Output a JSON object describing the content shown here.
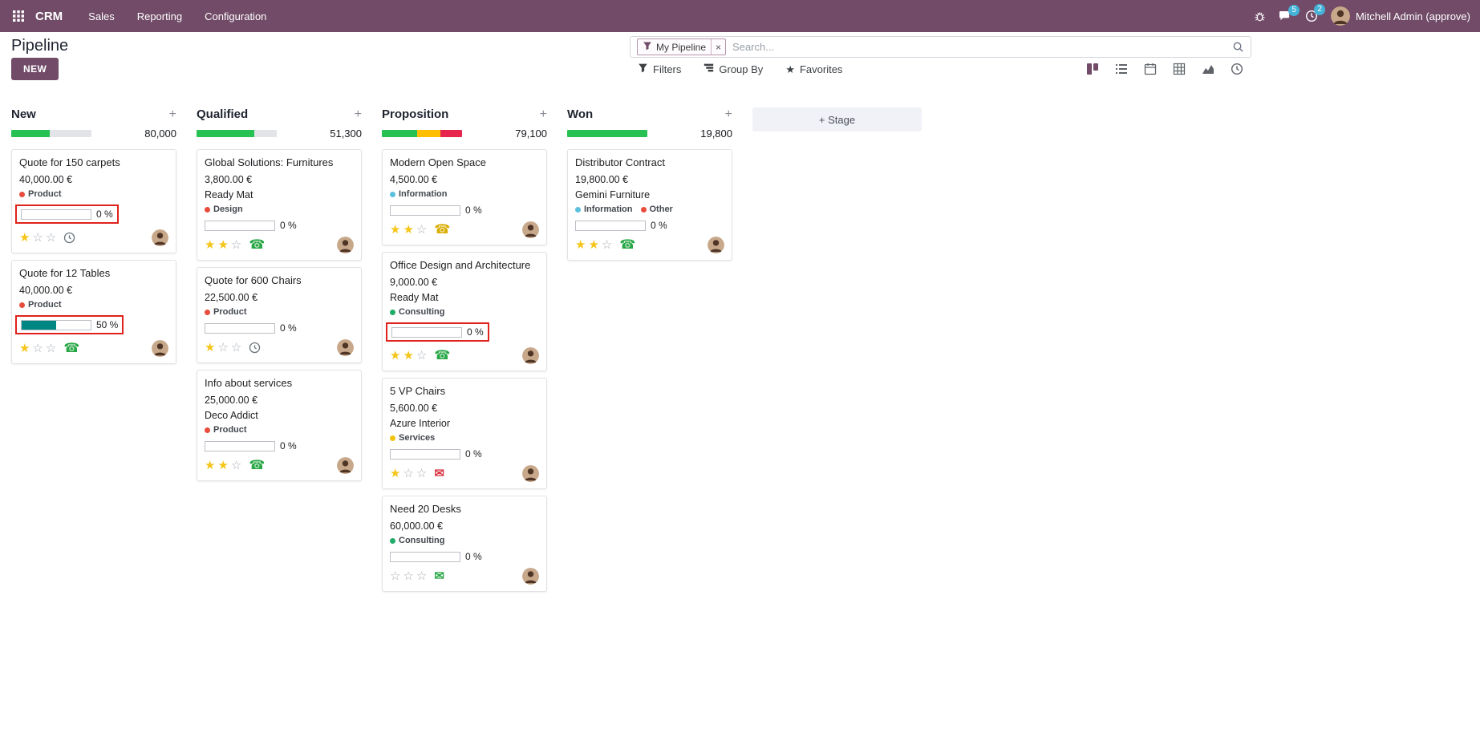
{
  "colors": {
    "brand": "#714B67",
    "success": "#28c153",
    "warning": "#ffbf00",
    "danger": "#e6264d",
    "muted": "#e2e4e8",
    "highlight": "#e0221c",
    "progress_fill": "#008784",
    "star": "#f5c518",
    "badge": "#45b3d8"
  },
  "topbar": {
    "app_name": "CRM",
    "menus": [
      "Sales",
      "Reporting",
      "Configuration"
    ],
    "message_badge": "5",
    "activity_badge": "2",
    "user_name": "Mitchell Admin (approve)"
  },
  "control": {
    "page_title": "Pipeline",
    "new_button": "NEW",
    "search": {
      "facet_label": "My Pipeline",
      "facet_remove": "×",
      "placeholder": "Search..."
    },
    "filter_buttons": [
      {
        "label": "Filters",
        "icon": "filter-icon",
        "iconKey": "filter"
      },
      {
        "label": "Group By",
        "icon": "group-by-icon",
        "iconKey": "group"
      },
      {
        "label": "Favorites",
        "icon": "favorites-star-icon",
        "iconKey": "star"
      }
    ]
  },
  "view_switcher": [
    {
      "name": "kanban",
      "active": true
    },
    {
      "name": "list",
      "active": false
    },
    {
      "name": "calendar",
      "active": false
    },
    {
      "name": "pivot",
      "active": false
    },
    {
      "name": "graph",
      "active": false
    },
    {
      "name": "activity",
      "active": false
    }
  ],
  "add_stage_label": "+ Stage",
  "columns": [
    {
      "name": "New",
      "total": "80,000",
      "bar": [
        {
          "color": "#28c153",
          "pct": 48
        },
        {
          "color": "#e2e4e8",
          "pct": 52
        }
      ],
      "cards": [
        {
          "title": "Quote for 150 carpets",
          "amount": "40,000.00 €",
          "partner": "",
          "tags": [
            {
              "label": "Product",
              "color": "#e74c3c"
            }
          ],
          "progress": {
            "label": "0 %",
            "fill": 0,
            "highlight": true
          },
          "stars": 1,
          "activity": {
            "type": "clock",
            "color": "#6c757d"
          }
        },
        {
          "title": "Quote for 12 Tables",
          "amount": "40,000.00 €",
          "partner": "",
          "tags": [
            {
              "label": "Product",
              "color": "#e74c3c"
            }
          ],
          "progress": {
            "label": "50 %",
            "fill": 50,
            "highlight": true
          },
          "stars": 1,
          "activity": {
            "type": "phone",
            "color": "#28a745"
          }
        }
      ]
    },
    {
      "name": "Qualified",
      "total": "51,300",
      "bar": [
        {
          "color": "#28c153",
          "pct": 72
        },
        {
          "color": "#e2e4e8",
          "pct": 28
        }
      ],
      "cards": [
        {
          "title": "Global Solutions: Furnitures",
          "amount": "3,800.00 €",
          "partner": "Ready Mat",
          "tags": [
            {
              "label": "Design",
              "color": "#e74c3c"
            }
          ],
          "progress": {
            "label": "0 %",
            "fill": 0,
            "highlight": false
          },
          "stars": 2,
          "activity": {
            "type": "phone",
            "color": "#28a745"
          }
        },
        {
          "title": "Quote for 600 Chairs",
          "amount": "22,500.00 €",
          "partner": "",
          "tags": [
            {
              "label": "Product",
              "color": "#e74c3c"
            }
          ],
          "progress": {
            "label": "0 %",
            "fill": 0,
            "highlight": false
          },
          "stars": 1,
          "activity": {
            "type": "clock",
            "color": "#6c757d"
          }
        },
        {
          "title": "Info about services",
          "amount": "25,000.00 €",
          "partner": "Deco Addict",
          "tags": [
            {
              "label": "Product",
              "color": "#e74c3c"
            }
          ],
          "progress": {
            "label": "0 %",
            "fill": 0,
            "highlight": false
          },
          "stars": 2,
          "activity": {
            "type": "phone",
            "color": "#28a745"
          }
        }
      ]
    },
    {
      "name": "Proposition",
      "total": "79,100",
      "bar": [
        {
          "color": "#28c153",
          "pct": 44
        },
        {
          "color": "#ffbf00",
          "pct": 29
        },
        {
          "color": "#e6264d",
          "pct": 27
        }
      ],
      "cards": [
        {
          "title": "Modern Open Space",
          "amount": "4,500.00 €",
          "partner": "",
          "tags": [
            {
              "label": "Information",
              "color": "#5bc0de"
            }
          ],
          "progress": {
            "label": "0 %",
            "fill": 0,
            "highlight": false
          },
          "stars": 2,
          "activity": {
            "type": "phone",
            "color": "#d8ad00"
          }
        },
        {
          "title": "Office Design and Architecture",
          "amount": "9,000.00 €",
          "partner": "Ready Mat",
          "tags": [
            {
              "label": "Consulting",
              "color": "#21ab69"
            }
          ],
          "progress": {
            "label": "0 %",
            "fill": 0,
            "highlight": true
          },
          "stars": 2,
          "activity": {
            "type": "phone",
            "color": "#28a745"
          }
        },
        {
          "title": "5 VP Chairs",
          "amount": "5,600.00 €",
          "partner": "Azure Interior",
          "tags": [
            {
              "label": "Services",
              "color": "#f2c40f"
            }
          ],
          "progress": {
            "label": "0 %",
            "fill": 0,
            "highlight": false
          },
          "stars": 1,
          "activity": {
            "type": "envelope",
            "color": "#dc3545"
          }
        },
        {
          "title": "Need 20 Desks",
          "amount": "60,000.00 €",
          "partner": "",
          "tags": [
            {
              "label": "Consulting",
              "color": "#21ab69"
            }
          ],
          "progress": {
            "label": "0 %",
            "fill": 0,
            "highlight": false
          },
          "stars": 0,
          "activity": {
            "type": "envelope",
            "color": "#28a745"
          }
        }
      ]
    },
    {
      "name": "Won",
      "total": "19,800",
      "bar": [
        {
          "color": "#28c153",
          "pct": 100
        }
      ],
      "cards": [
        {
          "title": "Distributor Contract",
          "amount": "19,800.00 €",
          "partner": "Gemini Furniture",
          "tags": [
            {
              "label": "Information",
              "color": "#5bc0de"
            },
            {
              "label": "Other",
              "color": "#e74c3c"
            }
          ],
          "progress": {
            "label": "0 %",
            "fill": 0,
            "highlight": false
          },
          "stars": 2,
          "activity": {
            "type": "phone",
            "color": "#28a745"
          }
        }
      ]
    }
  ]
}
